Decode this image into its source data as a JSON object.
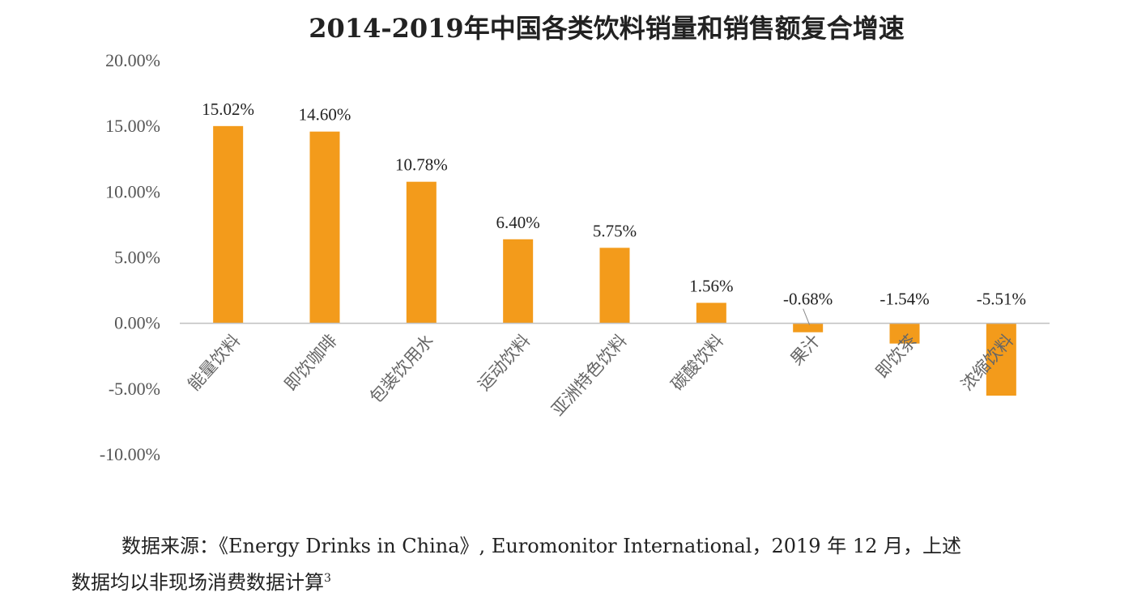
{
  "chart_data": {
    "type": "bar",
    "title": "2014-2019年中国各类饮料销量和销售额复合增速",
    "categories": [
      "能量饮料",
      "即饮咖啡",
      "包装饮用水",
      "运动饮料",
      "亚洲特色饮料",
      "碳酸饮料",
      "果汁",
      "即饮茶",
      "浓缩饮料"
    ],
    "values": [
      15.02,
      14.6,
      10.78,
      6.4,
      5.75,
      1.56,
      -0.68,
      -1.54,
      -5.51
    ],
    "data_labels": [
      "15.02%",
      "14.60%",
      "10.78%",
      "6.40%",
      "5.75%",
      "1.56%",
      "-0.68%",
      "-1.54%",
      "-5.51%"
    ],
    "ylim": [
      -10,
      20
    ],
    "y_ticks": [
      20,
      15,
      10,
      5,
      0,
      -5,
      -10
    ],
    "y_tick_labels": [
      "20.00%",
      "15.00%",
      "10.00%",
      "5.00%",
      "0.00%",
      "-5.00%",
      "-10.00%"
    ],
    "xlabel": "",
    "ylabel": "",
    "grid": false,
    "bar_color": "#F39B1B"
  },
  "caption": {
    "line1": "数据来源：《Energy Drinks in China》, Euromonitor International，2019 年 12 月，上述",
    "line2": "数据均以非现场消费数据计算",
    "footnote": "3"
  }
}
